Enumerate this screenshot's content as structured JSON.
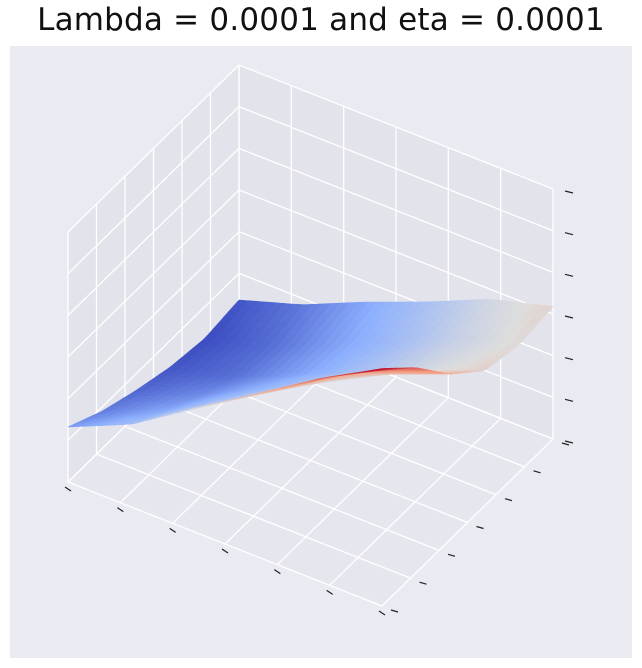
{
  "chart_data": {
    "type": "surface3d",
    "title": "Lambda = 0.0001 and eta = 0.0001",
    "xlabel": "",
    "ylabel": "",
    "zlabel": "",
    "tick_labels_visible": false,
    "grid": true,
    "colormap": "coolwarm",
    "background_color": "#EAEAF2",
    "grid_color": "#FFFFFF",
    "x": [
      0.0,
      0.2,
      0.4,
      0.6,
      0.8,
      1.0
    ],
    "y": [
      0.0,
      0.2,
      0.4,
      0.6,
      0.8,
      1.0
    ],
    "z_range": [
      0.0,
      0.1
    ],
    "z": [
      [
        0.095,
        0.082,
        0.066,
        0.054,
        0.051,
        0.053
      ],
      [
        0.081,
        0.07,
        0.056,
        0.045,
        0.043,
        0.046
      ],
      [
        0.065,
        0.054,
        0.043,
        0.034,
        0.032,
        0.035
      ],
      [
        0.049,
        0.039,
        0.03,
        0.023,
        0.022,
        0.025
      ],
      [
        0.033,
        0.025,
        0.018,
        0.012,
        0.011,
        0.014
      ],
      [
        0.022,
        0.015,
        0.01,
        0.006,
        0.004,
        0.006
      ]
    ]
  }
}
